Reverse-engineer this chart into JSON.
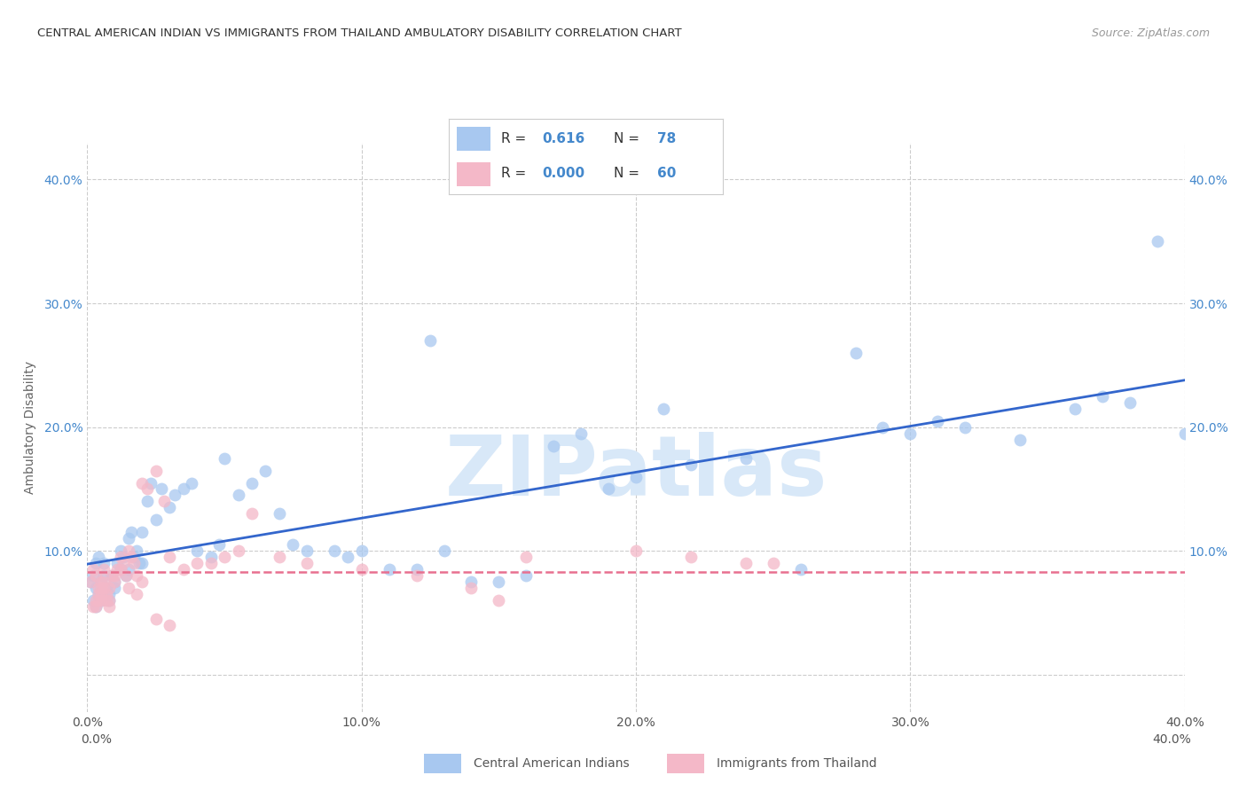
{
  "title": "CENTRAL AMERICAN INDIAN VS IMMIGRANTS FROM THAILAND AMBULATORY DISABILITY CORRELATION CHART",
  "source": "Source: ZipAtlas.com",
  "ylabel": "Ambulatory Disability",
  "legend1_label": "Central American Indians",
  "legend2_label": "Immigrants from Thailand",
  "R1": 0.616,
  "N1": 78,
  "R2": 0.0,
  "N2": 60,
  "color_blue": "#A8C8F0",
  "color_pink": "#F4B8C8",
  "line_blue": "#3366CC",
  "line_pink": "#E87090",
  "watermark_text": "ZIPatlas",
  "watermark_color": "#D8E8F8",
  "background_color": "#ffffff",
  "grid_color": "#cccccc",
  "blue_x": [
    0.001,
    0.002,
    0.002,
    0.003,
    0.003,
    0.004,
    0.005,
    0.005,
    0.006,
    0.007,
    0.008,
    0.009,
    0.01,
    0.011,
    0.012,
    0.012,
    0.013,
    0.014,
    0.015,
    0.016,
    0.017,
    0.018,
    0.019,
    0.02,
    0.022,
    0.023,
    0.025,
    0.027,
    0.03,
    0.032,
    0.035,
    0.038,
    0.04,
    0.045,
    0.048,
    0.05,
    0.055,
    0.06,
    0.065,
    0.07,
    0.075,
    0.08,
    0.09,
    0.095,
    0.1,
    0.11,
    0.12,
    0.125,
    0.13,
    0.14,
    0.15,
    0.16,
    0.17,
    0.18,
    0.19,
    0.2,
    0.21,
    0.22,
    0.24,
    0.26,
    0.28,
    0.29,
    0.3,
    0.31,
    0.32,
    0.34,
    0.36,
    0.37,
    0.38,
    0.39,
    0.4,
    0.003,
    0.004,
    0.006,
    0.008,
    0.01,
    0.015,
    0.02
  ],
  "blue_y": [
    0.075,
    0.08,
    0.06,
    0.07,
    0.055,
    0.065,
    0.075,
    0.06,
    0.08,
    0.07,
    0.065,
    0.08,
    0.075,
    0.09,
    0.1,
    0.085,
    0.095,
    0.08,
    0.11,
    0.115,
    0.095,
    0.1,
    0.09,
    0.115,
    0.14,
    0.155,
    0.125,
    0.15,
    0.135,
    0.145,
    0.15,
    0.155,
    0.1,
    0.095,
    0.105,
    0.175,
    0.145,
    0.155,
    0.165,
    0.13,
    0.105,
    0.1,
    0.1,
    0.095,
    0.1,
    0.085,
    0.085,
    0.27,
    0.1,
    0.075,
    0.075,
    0.08,
    0.185,
    0.195,
    0.15,
    0.16,
    0.215,
    0.17,
    0.175,
    0.085,
    0.26,
    0.2,
    0.195,
    0.205,
    0.2,
    0.19,
    0.215,
    0.225,
    0.22,
    0.35,
    0.195,
    0.09,
    0.095,
    0.09,
    0.06,
    0.07,
    0.085,
    0.09
  ],
  "pink_x": [
    0.001,
    0.002,
    0.002,
    0.003,
    0.004,
    0.004,
    0.005,
    0.005,
    0.006,
    0.007,
    0.008,
    0.009,
    0.01,
    0.011,
    0.012,
    0.013,
    0.014,
    0.015,
    0.016,
    0.017,
    0.018,
    0.02,
    0.022,
    0.025,
    0.028,
    0.03,
    0.035,
    0.04,
    0.045,
    0.05,
    0.055,
    0.06,
    0.07,
    0.08,
    0.1,
    0.12,
    0.14,
    0.15,
    0.16,
    0.2,
    0.22,
    0.24,
    0.25,
    0.003,
    0.005,
    0.006,
    0.007,
    0.008,
    0.01,
    0.012,
    0.015,
    0.018,
    0.02,
    0.025,
    0.03,
    0.003,
    0.004,
    0.005,
    0.006,
    0.008
  ],
  "pink_y": [
    0.075,
    0.085,
    0.055,
    0.08,
    0.07,
    0.06,
    0.075,
    0.065,
    0.085,
    0.06,
    0.07,
    0.08,
    0.075,
    0.085,
    0.095,
    0.09,
    0.08,
    0.1,
    0.095,
    0.09,
    0.08,
    0.155,
    0.15,
    0.165,
    0.14,
    0.095,
    0.085,
    0.09,
    0.09,
    0.095,
    0.1,
    0.13,
    0.095,
    0.09,
    0.085,
    0.08,
    0.07,
    0.06,
    0.095,
    0.1,
    0.095,
    0.09,
    0.09,
    0.06,
    0.07,
    0.075,
    0.065,
    0.06,
    0.08,
    0.085,
    0.07,
    0.065,
    0.075,
    0.045,
    0.04,
    0.055,
    0.065,
    0.06,
    0.07,
    0.055
  ],
  "xlim": [
    0.0,
    0.4
  ],
  "ylim": [
    -0.03,
    0.43
  ],
  "xtick_vals": [
    0.0,
    0.1,
    0.2,
    0.3,
    0.4
  ],
  "ytick_vals": [
    0.0,
    0.1,
    0.2,
    0.3,
    0.4
  ],
  "xtick_labels": [
    "0.0%",
    "10.0%",
    "20.0%",
    "30.0%",
    "40.0%"
  ],
  "ytick_labels_left": [
    "",
    "10.0%",
    "20.0%",
    "30.0%",
    "40.0%"
  ],
  "ytick_labels_right": [
    "",
    "10.0%",
    "20.0%",
    "30.0%",
    "40.0%"
  ]
}
